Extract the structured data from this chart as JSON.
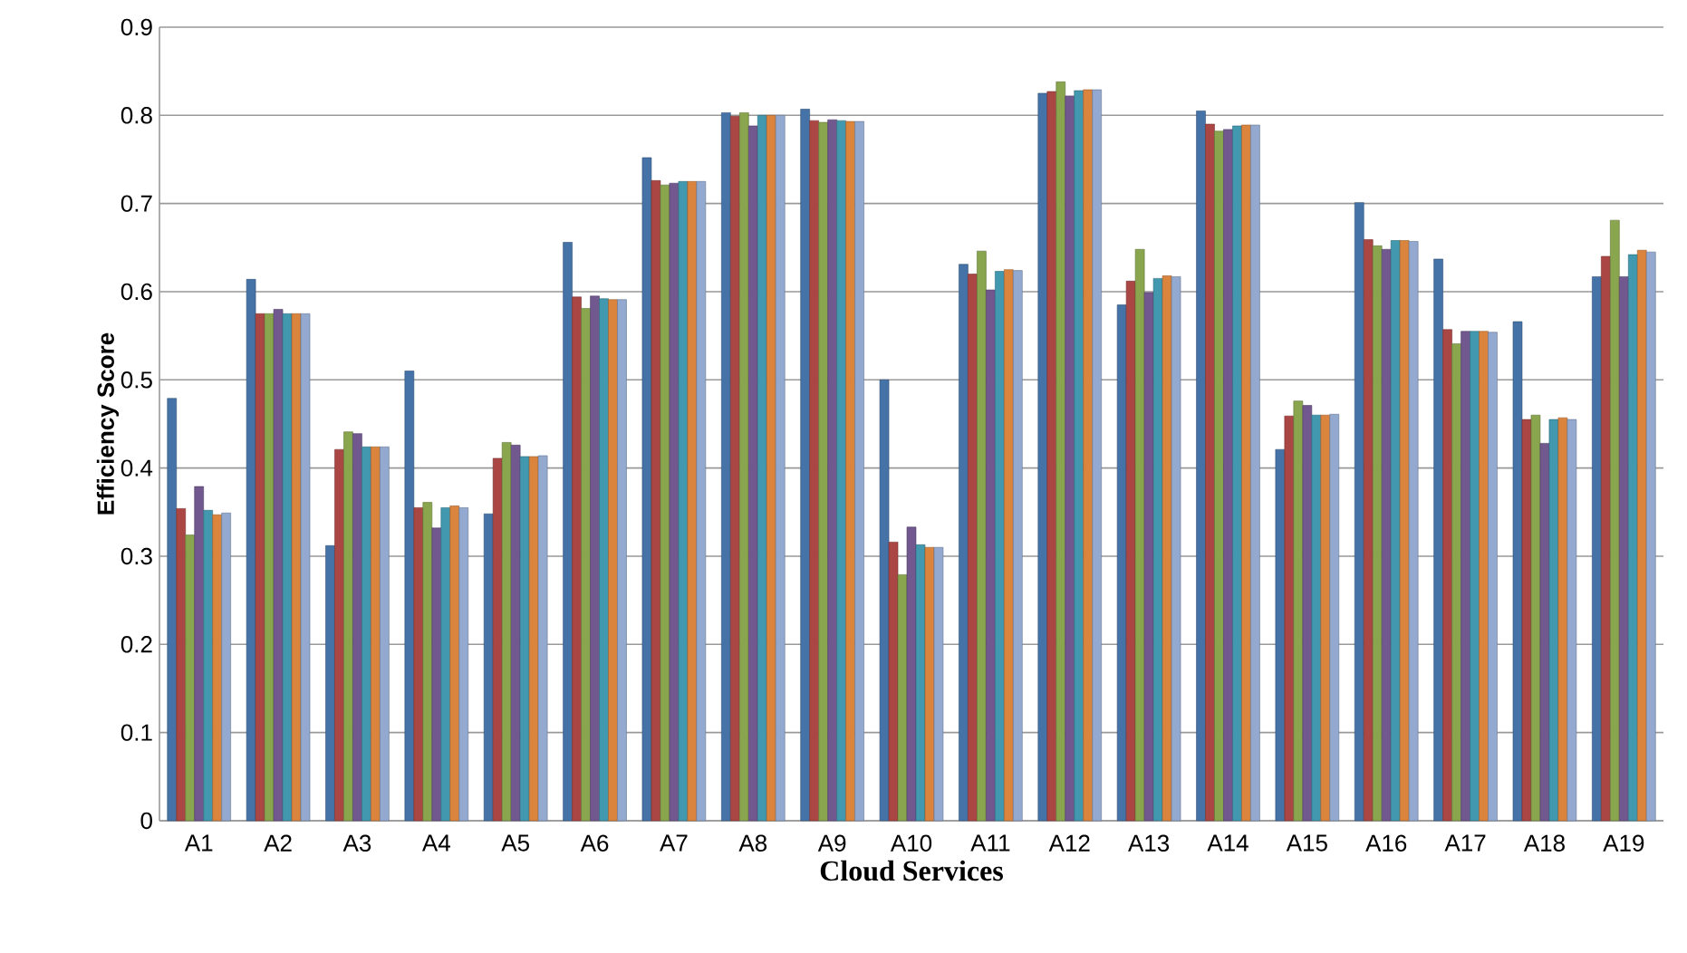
{
  "chart_data": {
    "type": "bar",
    "xlabel": "Cloud Services",
    "ylabel": "Efficiency Score",
    "categories": [
      "A1",
      "A2",
      "A3",
      "A4",
      "A5",
      "A6",
      "A7",
      "A8",
      "A9",
      "A10",
      "A11",
      "A12",
      "A13",
      "A14",
      "A15",
      "A16",
      "A17",
      "A18",
      "A19"
    ],
    "series": [
      {
        "color": "#4572a7",
        "values": [
          0.479,
          0.614,
          0.312,
          0.51,
          0.348,
          0.656,
          0.752,
          0.803,
          0.807,
          0.5,
          0.631,
          0.825,
          0.585,
          0.805,
          0.421,
          0.701,
          0.637,
          0.566,
          0.617
        ]
      },
      {
        "color": "#aa4643",
        "values": [
          0.354,
          0.575,
          0.421,
          0.355,
          0.411,
          0.594,
          0.726,
          0.799,
          0.794,
          0.316,
          0.62,
          0.827,
          0.612,
          0.79,
          0.459,
          0.659,
          0.557,
          0.455,
          0.64
        ]
      },
      {
        "color": "#89a54e",
        "values": [
          0.324,
          0.575,
          0.441,
          0.361,
          0.429,
          0.581,
          0.721,
          0.803,
          0.792,
          0.279,
          0.646,
          0.838,
          0.648,
          0.782,
          0.476,
          0.652,
          0.541,
          0.46,
          0.681
        ]
      },
      {
        "color": "#71588f",
        "values": [
          0.379,
          0.58,
          0.439,
          0.332,
          0.426,
          0.595,
          0.723,
          0.788,
          0.795,
          0.333,
          0.602,
          0.822,
          0.599,
          0.784,
          0.471,
          0.648,
          0.555,
          0.428,
          0.617
        ]
      },
      {
        "color": "#4198af",
        "values": [
          0.352,
          0.575,
          0.424,
          0.355,
          0.413,
          0.592,
          0.725,
          0.8,
          0.794,
          0.313,
          0.623,
          0.828,
          0.615,
          0.788,
          0.46,
          0.658,
          0.555,
          0.455,
          0.642
        ]
      },
      {
        "color": "#db843d",
        "values": [
          0.347,
          0.575,
          0.424,
          0.357,
          0.413,
          0.591,
          0.725,
          0.8,
          0.793,
          0.31,
          0.625,
          0.829,
          0.618,
          0.789,
          0.46,
          0.658,
          0.555,
          0.457,
          0.647
        ]
      },
      {
        "color": "#93a9cf",
        "values": [
          0.349,
          0.575,
          0.424,
          0.355,
          0.414,
          0.591,
          0.725,
          0.8,
          0.793,
          0.31,
          0.624,
          0.829,
          0.617,
          0.789,
          0.461,
          0.657,
          0.554,
          0.455,
          0.645
        ]
      }
    ],
    "ylim": [
      0,
      0.9
    ],
    "yticks": [
      0,
      0.1,
      0.2,
      0.3,
      0.4,
      0.5,
      0.6,
      0.7,
      0.8,
      0.9
    ],
    "grid": "y"
  }
}
